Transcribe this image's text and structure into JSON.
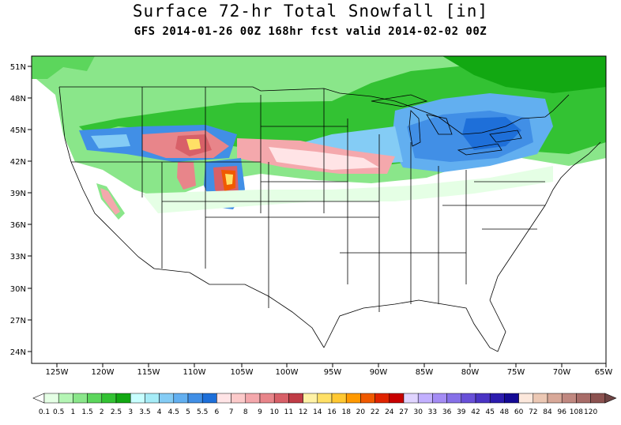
{
  "title": "Surface 72-hr Total Snowfall [in]",
  "subtitle": "GFS 2014-01-26 00Z 168hr fcst valid 2014-02-02 00Z",
  "lat_labels": [
    "51N",
    "48N",
    "45N",
    "42N",
    "39N",
    "36N",
    "33N",
    "30N",
    "27N",
    "24N"
  ],
  "lon_labels": [
    "125W",
    "120W",
    "115W",
    "110W",
    "105W",
    "100W",
    "95W",
    "90W",
    "85W",
    "80W",
    "75W",
    "70W",
    "65W"
  ],
  "colorbar": {
    "labels": [
      "0.1",
      "0.5",
      "1",
      "1.5",
      "2",
      "2.5",
      "3",
      "3.5",
      "4",
      "4.5",
      "5",
      "5.5",
      "6",
      "7",
      "8",
      "9",
      "10",
      "11",
      "12",
      "14",
      "16",
      "18",
      "20",
      "22",
      "24",
      "27",
      "30",
      "33",
      "36",
      "39",
      "42",
      "45",
      "48",
      "60",
      "72",
      "84",
      "96",
      "108",
      "120"
    ],
    "colors": [
      "#e5ffe5",
      "#b4f5b4",
      "#8ae68a",
      "#5cd65c",
      "#33c233",
      "#12a812",
      "#c8ffff",
      "#a6ecf7",
      "#84ccf5",
      "#62aff0",
      "#418fe6",
      "#1e6fd9",
      "#ffe4e6",
      "#fccaca",
      "#f4a8ac",
      "#e8858a",
      "#d86068",
      "#c03c46",
      "#fff2a6",
      "#ffe066",
      "#ffc832",
      "#ff9900",
      "#f05a00",
      "#e02400",
      "#c80000",
      "#e0d4ff",
      "#c2b0ff",
      "#a48cf4",
      "#8670e8",
      "#6850d8",
      "#4a34c4",
      "#2c1cae",
      "#140a94",
      "#fce8dc",
      "#ecc8b4",
      "#d8a898",
      "#c08880",
      "#a86c68",
      "#8c5250"
    ]
  }
}
